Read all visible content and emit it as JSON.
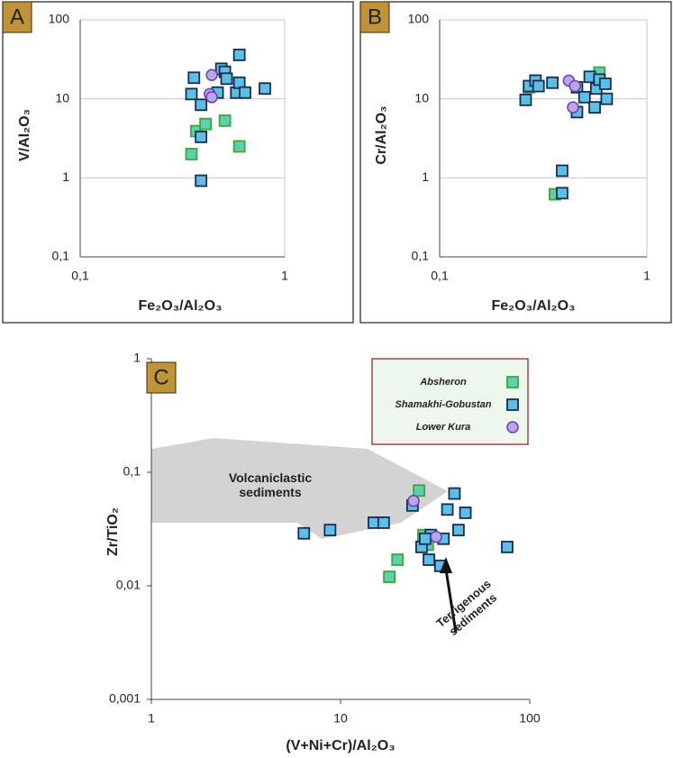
{
  "chart_data": [
    {
      "type": "scatter",
      "panel_label": "A",
      "xlabel": "Fe₂O₃/Al₂O₃",
      "ylabel": "V/Al₂O₃",
      "log_x": true,
      "log_y": true,
      "grid": true,
      "xlim": [
        0.1,
        1
      ],
      "ylim": [
        0.1,
        100
      ],
      "xticks": [
        {
          "value": 0.1,
          "label": "0,1"
        },
        1
      ],
      "yticks": [
        {
          "value": 0.1,
          "label": "0,1"
        },
        1,
        10,
        100
      ],
      "series": [
        {
          "color": "#5fd0ad",
          "edgecolor": "#3aa83a",
          "marker": "square",
          "x": [
            0.35,
            0.37,
            0.41,
            0.51,
            0.6
          ],
          "y": [
            2.0,
            3.9,
            4.8,
            5.3,
            2.5
          ]
        },
        {
          "color": "#5bbfe6",
          "edgecolor": "#1c2b52",
          "marker": "square",
          "x": [
            0.36,
            0.35,
            0.39,
            0.39,
            0.39,
            0.47,
            0.49,
            0.51,
            0.52,
            0.58,
            0.6,
            0.6,
            0.64,
            0.8
          ],
          "y": [
            18.5,
            11.5,
            8.4,
            3.3,
            0.92,
            12,
            24,
            22,
            18,
            12,
            16,
            36,
            12,
            13.5
          ]
        },
        {
          "color": "#b9a5ea",
          "edgecolor": "#6a3fb0",
          "marker": "circle",
          "x": [
            0.44,
            0.43,
            0.44
          ],
          "y": [
            20,
            11.5,
            10.5
          ]
        }
      ]
    },
    {
      "type": "scatter",
      "panel_label": "B",
      "xlabel": "Fe₂O₃/Al₂O₃",
      "ylabel": "Cr/Al₂O₃",
      "log_x": true,
      "log_y": true,
      "grid": true,
      "xlim": [
        0.1,
        1
      ],
      "ylim": [
        0.1,
        100
      ],
      "xticks": [
        {
          "value": 0.1,
          "label": "0,1"
        },
        1
      ],
      "yticks": [
        {
          "value": 0.1,
          "label": "0,1"
        },
        1,
        10,
        100
      ],
      "series": [
        {
          "color": "#5fd0ad",
          "edgecolor": "#3aa83a",
          "marker": "square",
          "x": [
            0.36,
            0.59,
            0.27
          ],
          "y": [
            0.62,
            21.5,
            14
          ]
        },
        {
          "color": "#5bbfe6",
          "edgecolor": "#1c2b52",
          "marker": "square",
          "x": [
            0.39,
            0.39,
            0.26,
            0.27,
            0.29,
            0.3,
            0.35,
            0.46,
            0.46,
            0.5,
            0.53,
            0.56,
            0.57,
            0.59,
            0.63,
            0.64
          ],
          "y": [
            0.64,
            1.23,
            9.7,
            14.5,
            17,
            14.5,
            16,
            14,
            6.8,
            10.5,
            19,
            7.8,
            13.5,
            17.5,
            15.5,
            10
          ]
        },
        {
          "color": "#b9a5ea",
          "edgecolor": "#6a3fb0",
          "marker": "circle",
          "x": [
            0.42,
            0.45,
            0.44
          ],
          "y": [
            17,
            14.5,
            7.8
          ]
        }
      ]
    },
    {
      "type": "scatter",
      "panel_label": "C",
      "xlabel": "(V+Ni+Cr)/Al₂O₃",
      "ylabel": "Zr/TiO₂",
      "log_x": true,
      "log_y": true,
      "grid": false,
      "legend": "upper right",
      "xlim": [
        1,
        100
      ],
      "ylim": [
        0.001,
        1
      ],
      "xticks": [
        1,
        10,
        100
      ],
      "yticks": [
        {
          "value": 0.001,
          "label": "0,001"
        },
        {
          "value": 0.01,
          "label": "0,01"
        },
        {
          "value": 0.1,
          "label": "0,1"
        },
        1
      ],
      "annotations": [
        {
          "text": "Volcaniclastic sediments"
        },
        {
          "text": "Terrigenous sediments"
        }
      ],
      "series": [
        {
          "name": "Absheron",
          "color": "#5fd0ad",
          "edgecolor": "#3aa83a",
          "marker": "square",
          "x": [
            26,
            27.4,
            28.9,
            20,
            18.1
          ],
          "y": [
            0.069,
            0.028,
            0.023,
            0.017,
            0.012
          ]
        },
        {
          "name": "Shamakhi-Gobustan",
          "color": "#5bbfe6",
          "edgecolor": "#1c2b52",
          "marker": "square",
          "x": [
            6.4,
            8.8,
            15,
            16.9,
            24,
            40,
            36.7,
            45.7,
            42,
            26.8,
            29.3,
            33.7,
            30,
            35,
            76,
            28
          ],
          "y": [
            0.029,
            0.031,
            0.036,
            0.036,
            0.051,
            0.065,
            0.047,
            0.044,
            0.031,
            0.022,
            0.017,
            0.015,
            0.028,
            0.026,
            0.022,
            0.026
          ]
        },
        {
          "name": "Lower Kura",
          "color": "#b9a5ea",
          "edgecolor": "#6a3fb0",
          "marker": "circle",
          "x": [
            24.3,
            32
          ],
          "y": [
            0.056,
            0.027
          ]
        }
      ]
    }
  ]
}
